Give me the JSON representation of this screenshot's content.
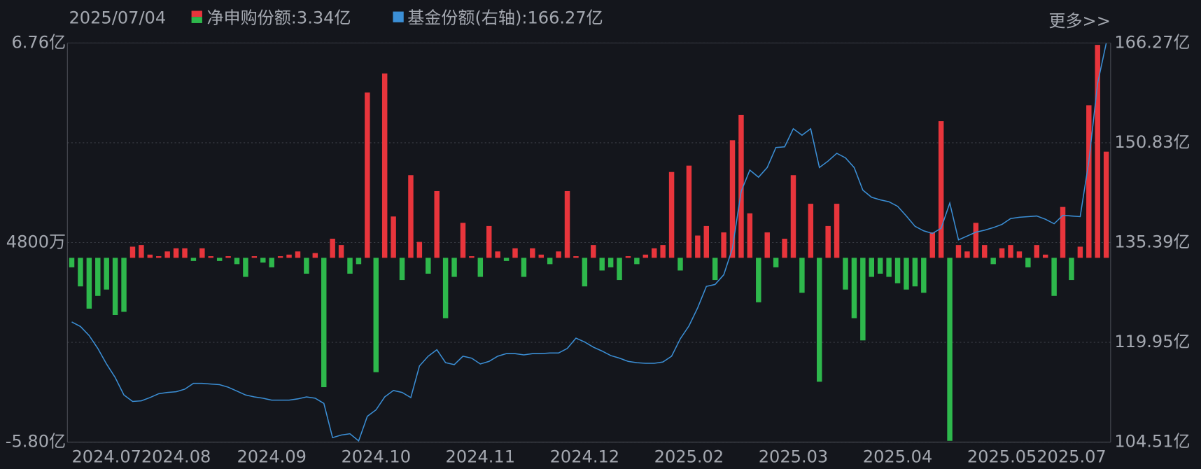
{
  "header": {
    "date": "2025/07/04",
    "more": "更多>>"
  },
  "chart_data": {
    "type": "bar-line",
    "categories": [
      null,
      null,
      null,
      null,
      "2024.07",
      null,
      null,
      null,
      null,
      null,
      null,
      null,
      "2024.08",
      null,
      null,
      null,
      null,
      null,
      null,
      null,
      null,
      null,
      null,
      "2024.09",
      null,
      null,
      null,
      null,
      null,
      null,
      null,
      null,
      null,
      null,
      null,
      "2024.10",
      null,
      null,
      null,
      null,
      null,
      null,
      null,
      null,
      null,
      null,
      null,
      "2024.11",
      null,
      null,
      null,
      null,
      null,
      null,
      null,
      null,
      null,
      null,
      null,
      "2024.12",
      null,
      null,
      null,
      null,
      null,
      null,
      null,
      null,
      null,
      null,
      null,
      "2025.02",
      null,
      null,
      null,
      null,
      null,
      null,
      null,
      null,
      null,
      null,
      null,
      "2025.03",
      null,
      null,
      null,
      null,
      null,
      null,
      null,
      null,
      null,
      null,
      null,
      "2025.04",
      null,
      null,
      null,
      null,
      null,
      null,
      null,
      null,
      null,
      null,
      null,
      "2025.05",
      null,
      null,
      null,
      null,
      null,
      null,
      null,
      "2025.07",
      null,
      null,
      null,
      null
    ],
    "series": [
      {
        "name": "净申购份额",
        "type": "bar",
        "color": "#e8353c",
        "negative_color": "#2eb84c",
        "legend_value": "3.34亿",
        "values": [
          -0.3,
          -0.9,
          -1.6,
          -1.2,
          -1.0,
          -1.8,
          -1.7,
          0.35,
          0.4,
          0.1,
          0.05,
          0.2,
          0.3,
          0.3,
          -0.1,
          0.3,
          0.05,
          -0.1,
          0.05,
          -0.2,
          -0.6,
          0.05,
          -0.15,
          -0.3,
          0.05,
          0.1,
          0.2,
          -0.5,
          0.15,
          -4.07,
          0.6,
          0.4,
          -0.5,
          -0.2,
          5.2,
          -3.6,
          5.8,
          1.3,
          -0.7,
          2.6,
          0.5,
          -0.5,
          2.1,
          -1.9,
          -0.6,
          1.1,
          0.05,
          -0.6,
          1.0,
          0.2,
          -0.1,
          0.3,
          -0.6,
          0.3,
          0.1,
          -0.2,
          0.2,
          2.1,
          0.05,
          -0.9,
          0.4,
          -0.4,
          -0.3,
          -0.7,
          0.05,
          -0.2,
          0.1,
          0.3,
          0.4,
          2.7,
          -0.4,
          2.9,
          0.7,
          1.0,
          -0.7,
          0.8,
          3.7,
          4.5,
          1.4,
          -1.4,
          0.8,
          -0.3,
          0.6,
          2.6,
          -1.1,
          1.7,
          -3.9,
          1.0,
          1.7,
          -1.0,
          -1.9,
          -2.6,
          -0.6,
          -0.5,
          -0.6,
          -0.8,
          -1.0,
          -0.9,
          -1.1,
          0.8,
          4.3,
          -5.76,
          0.4,
          0.2,
          1.1,
          0.4,
          -0.2,
          0.3,
          0.4,
          0.2,
          -0.3,
          0.4,
          0.1,
          -1.2,
          1.6,
          -0.7,
          0.35,
          4.8,
          6.7,
          3.34
        ]
      },
      {
        "name": "基金份额(右轴)",
        "type": "line",
        "axis": "y2",
        "color": "#3b8fd6",
        "legend_value": "166.27亿",
        "values": [
          123.1,
          122.4,
          121.0,
          119.0,
          116.6,
          114.5,
          111.8,
          110.8,
          110.9,
          111.4,
          112.0,
          112.2,
          112.3,
          112.7,
          113.6,
          113.6,
          113.5,
          113.4,
          113.0,
          112.4,
          111.8,
          111.5,
          111.3,
          111.0,
          111.0,
          111.0,
          111.2,
          111.5,
          111.3,
          110.5,
          105.2,
          105.6,
          105.8,
          104.7,
          108.5,
          109.5,
          111.5,
          112.5,
          112.2,
          111.4,
          116.3,
          117.8,
          118.8,
          116.8,
          116.5,
          117.8,
          117.5,
          116.6,
          117.0,
          117.8,
          118.2,
          118.2,
          118.0,
          118.2,
          118.2,
          118.3,
          118.3,
          119.0,
          120.6,
          120.0,
          119.2,
          118.6,
          117.9,
          117.5,
          117.0,
          116.8,
          116.7,
          116.7,
          116.9,
          117.8,
          120.5,
          122.5,
          125.3,
          128.6,
          128.9,
          130.4,
          134.5,
          143.3,
          146.6,
          145.5,
          147.0,
          150.1,
          150.2,
          153.0,
          152.0,
          153.0,
          147.0,
          148.0,
          149.2,
          148.5,
          147.0,
          143.5,
          142.4,
          142.0,
          141.7,
          141.0,
          139.5,
          137.9,
          137.2,
          136.8,
          137.6,
          141.5,
          135.8,
          136.4,
          137.0,
          137.3,
          137.7,
          138.2,
          139.1,
          139.3,
          139.4,
          139.5,
          139.0,
          138.3,
          139.6,
          139.5,
          139.4,
          148.0,
          160.0,
          166.27
        ]
      }
    ],
    "ylim": [
      -5.8,
      6.76
    ],
    "yticks": [
      {
        "value": 6.76,
        "label": "6.76亿"
      },
      {
        "value": 0.48,
        "label": "4800万"
      },
      {
        "value": -5.8,
        "label": "-5.80亿"
      }
    ],
    "y2lim": [
      104.51,
      166.27
    ],
    "y2ticks": [
      {
        "value": 166.27,
        "label": "166.27亿"
      },
      {
        "value": 150.83,
        "label": "150.83亿"
      },
      {
        "value": 135.39,
        "label": "135.39亿"
      },
      {
        "value": 119.95,
        "label": "119.95亿"
      },
      {
        "value": 104.51,
        "label": "104.51亿"
      }
    ],
    "grid": true
  }
}
